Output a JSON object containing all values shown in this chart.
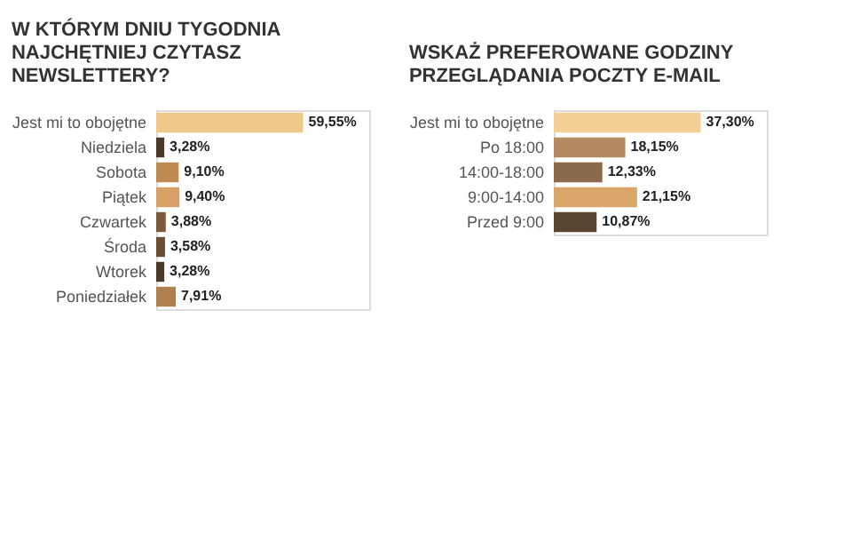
{
  "chart_data": [
    {
      "type": "bar",
      "orientation": "horizontal",
      "title": "W KTÓRYM DNIU TYGODNIA\nNAJCHĘTNIEJ CZYTASZ\nNEWSLETTERY?",
      "categories": [
        "Jest mi to obojętne",
        "Niedziela",
        "Sobota",
        "Piątek",
        "Czwartek",
        "Środa",
        "Wtorek",
        "Poniedziałek"
      ],
      "values": [
        59.55,
        3.28,
        9.1,
        9.4,
        3.88,
        3.58,
        3.28,
        7.91
      ],
      "value_labels": [
        "59,55%",
        "3,28%",
        "9,10%",
        "9,40%",
        "3,88%",
        "3,58%",
        "3,28%",
        "7,91%"
      ],
      "colors": [
        "#f0c98a",
        "#4a3a2a",
        "#c08a55",
        "#d9a066",
        "#7a5a3a",
        "#6a4e34",
        "#4a3a2a",
        "#b07f4f"
      ]
    },
    {
      "type": "bar",
      "orientation": "horizontal",
      "title": "WSKAŻ PREFEROWANE GODZINY\nPRZEGLĄDANIA POCZTY E-MAIL",
      "categories": [
        "Jest mi to obojętne",
        "Po 18:00",
        "14:00-18:00",
        "9:00-14:00",
        "Przed 9:00"
      ],
      "values": [
        37.3,
        18.15,
        12.33,
        21.15,
        10.87
      ],
      "value_labels": [
        "37,30%",
        "18,15%",
        "12,33%",
        "21,15%",
        "10,87%"
      ],
      "colors": [
        "#f3cf95",
        "#b58a62",
        "#8a6a4a",
        "#d9a568",
        "#5a4630"
      ]
    }
  ]
}
